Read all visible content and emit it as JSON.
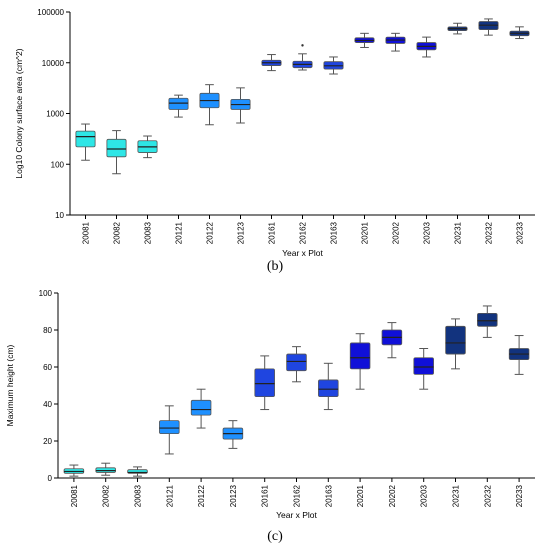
{
  "panels": {
    "b": "(b)",
    "c": "(c)"
  },
  "chart_data": [
    {
      "type": "box",
      "panel": "b",
      "title": "",
      "xlabel": "Year x Plot",
      "ylabel": "Log10 Colony surface area (cm^2)",
      "yscale": "log",
      "ylim": [
        10,
        100000
      ],
      "yticks": [
        10,
        100,
        1000,
        10000,
        100000
      ],
      "ytick_labels": [
        "10",
        "100",
        "1000",
        "10000",
        "100000"
      ],
      "grid": false,
      "categories": [
        "20081",
        "20082",
        "20083",
        "20121",
        "20122",
        "20123",
        "20161",
        "20162",
        "20163",
        "20201",
        "20202",
        "20203",
        "20231",
        "20232",
        "20233"
      ],
      "colors": [
        "#2ee6e6",
        "#2ee6e6",
        "#2ee6e6",
        "#1e90ff",
        "#1e90ff",
        "#1e90ff",
        "#1f45e0",
        "#1f45e0",
        "#1f45e0",
        "#1010d8",
        "#1010d8",
        "#1010d8",
        "#12337e",
        "#12337e",
        "#12337e"
      ],
      "boxes": [
        {
          "min": 120,
          "q1": 220,
          "median": 350,
          "q3": 450,
          "max": 620
        },
        {
          "min": 65,
          "q1": 140,
          "median": 200,
          "q3": 310,
          "max": 460
        },
        {
          "min": 135,
          "q1": 170,
          "median": 220,
          "q3": 290,
          "max": 360
        },
        {
          "min": 850,
          "q1": 1200,
          "median": 1600,
          "q3": 2000,
          "max": 2300
        },
        {
          "min": 600,
          "q1": 1300,
          "median": 1800,
          "q3": 2500,
          "max": 3700
        },
        {
          "min": 650,
          "q1": 1200,
          "median": 1500,
          "q3": 1900,
          "max": 3200
        },
        {
          "min": 7000,
          "q1": 8800,
          "median": 10000,
          "q3": 11200,
          "max": 14500
        },
        {
          "min": 7200,
          "q1": 8000,
          "median": 9300,
          "q3": 10700,
          "max": 15000,
          "outliers": [
            22000
          ]
        },
        {
          "min": 6000,
          "q1": 7500,
          "median": 8700,
          "q3": 10500,
          "max": 13000
        },
        {
          "min": 20000,
          "q1": 25000,
          "median": 27500,
          "q3": 31000,
          "max": 38000
        },
        {
          "min": 17000,
          "q1": 24000,
          "median": 28000,
          "q3": 32000,
          "max": 38000
        },
        {
          "min": 13000,
          "q1": 18000,
          "median": 21000,
          "q3": 25000,
          "max": 32000
        },
        {
          "min": 37000,
          "q1": 43000,
          "median": 47000,
          "q3": 51000,
          "max": 60000
        },
        {
          "min": 35000,
          "q1": 45000,
          "median": 55000,
          "q3": 65000,
          "max": 73000
        },
        {
          "min": 30000,
          "q1": 34000,
          "median": 38000,
          "q3": 42000,
          "max": 51000
        }
      ]
    },
    {
      "type": "box",
      "panel": "c",
      "title": "",
      "xlabel": "Year x Plot",
      "ylabel": "Maximum height (cm)",
      "yscale": "linear",
      "ylim": [
        0,
        100
      ],
      "yticks": [
        0,
        20,
        40,
        60,
        80,
        100
      ],
      "ytick_labels": [
        "0",
        "20",
        "40",
        "60",
        "80",
        "100"
      ],
      "grid": false,
      "categories": [
        "20081",
        "20082",
        "20083",
        "20121",
        "20122",
        "20123",
        "20161",
        "20162",
        "20163",
        "20201",
        "20202",
        "20203",
        "20231",
        "20232",
        "20233"
      ],
      "colors": [
        "#2ee6e6",
        "#2ee6e6",
        "#2ee6e6",
        "#1e90ff",
        "#1e90ff",
        "#1e90ff",
        "#1f45e0",
        "#1f45e0",
        "#1f45e0",
        "#1010d8",
        "#1010d8",
        "#1010d8",
        "#12337e",
        "#12337e",
        "#12337e"
      ],
      "boxes": [
        {
          "min": 1,
          "q1": 2.5,
          "median": 3.5,
          "q3": 5,
          "max": 7
        },
        {
          "min": 1.5,
          "q1": 3,
          "median": 4,
          "q3": 5.5,
          "max": 8
        },
        {
          "min": 1,
          "q1": 2.5,
          "median": 3,
          "q3": 4.5,
          "max": 6
        },
        {
          "min": 13,
          "q1": 24,
          "median": 27,
          "q3": 31,
          "max": 39
        },
        {
          "min": 27,
          "q1": 34,
          "median": 37,
          "q3": 42,
          "max": 48
        },
        {
          "min": 16,
          "q1": 21,
          "median": 24,
          "q3": 27,
          "max": 31
        },
        {
          "min": 37,
          "q1": 44,
          "median": 51,
          "q3": 59,
          "max": 66
        },
        {
          "min": 52,
          "q1": 58,
          "median": 63,
          "q3": 67,
          "max": 71
        },
        {
          "min": 37,
          "q1": 44,
          "median": 48,
          "q3": 53,
          "max": 62
        },
        {
          "min": 48,
          "q1": 59,
          "median": 65,
          "q3": 73,
          "max": 78
        },
        {
          "min": 65,
          "q1": 72,
          "median": 76,
          "q3": 80,
          "max": 84
        },
        {
          "min": 48,
          "q1": 56,
          "median": 60,
          "q3": 65,
          "max": 70
        },
        {
          "min": 59,
          "q1": 67,
          "median": 73,
          "q3": 82,
          "max": 86
        },
        {
          "min": 76,
          "q1": 82,
          "median": 85,
          "q3": 89,
          "max": 93
        },
        {
          "min": 56,
          "q1": 64,
          "median": 67,
          "q3": 70,
          "max": 77
        }
      ]
    }
  ]
}
